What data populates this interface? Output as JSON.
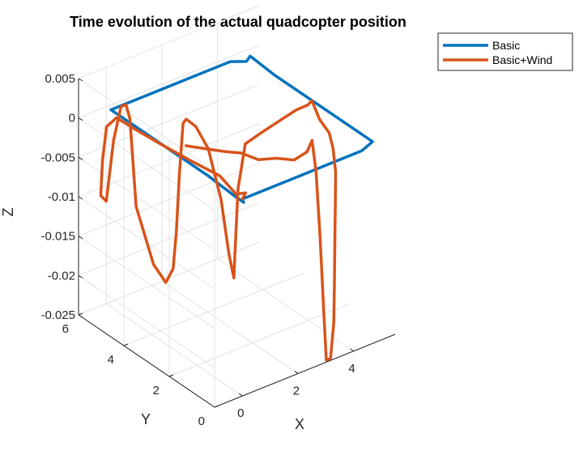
{
  "chart_data": {
    "type": "line",
    "title": "Time evolution of the actual quadcopter position",
    "xlabel": "X",
    "ylabel": "Y",
    "zlabel": "Z",
    "xlim": [
      -1,
      5.5
    ],
    "ylim": [
      0,
      6
    ],
    "zlim": [
      -0.025,
      0.005
    ],
    "xticks": [
      0,
      2,
      4
    ],
    "yticks": [
      0,
      2,
      4,
      6
    ],
    "zticks": [
      0.005,
      0,
      -0.005,
      -0.01,
      -0.015,
      -0.02,
      -0.025
    ],
    "xtick_labels": [
      "0",
      "2",
      "4"
    ],
    "ytick_labels": [
      "0",
      "2",
      "4",
      "6"
    ],
    "ztick_labels": [
      "0.005",
      "0",
      "-0.005",
      "-0.01",
      "-0.015",
      "-0.02",
      "-0.025"
    ],
    "grid": true,
    "legend_position": "top-right",
    "series": [
      {
        "name": "Basic",
        "color": "#0072BD",
        "points": [
          [
            0,
            0,
            0
          ],
          [
            0.05,
            0,
            -0.0005
          ],
          [
            0,
            0.3,
            -0.0003
          ],
          [
            0,
            1.5,
            0.0
          ],
          [
            0,
            3.0,
            0.0
          ],
          [
            0,
            4.5,
            0.0
          ],
          [
            0,
            5.8,
            0.0
          ],
          [
            0.3,
            5.8,
            0.0
          ],
          [
            1.5,
            5.8,
            0.0
          ],
          [
            3.0,
            5.8,
            0.0
          ],
          [
            4.3,
            5.8,
            0.0
          ],
          [
            4.8,
            5.7,
            -0.0005
          ],
          [
            4.85,
            5.6,
            0.0003
          ],
          [
            4.85,
            4.5,
            0.0
          ],
          [
            4.85,
            3.0,
            0.0
          ],
          [
            4.85,
            1.5,
            0.0
          ],
          [
            4.85,
            0.2,
            0.0
          ],
          [
            4.3,
            0.0,
            0.0
          ],
          [
            3.0,
            0.0,
            0.0
          ],
          [
            1.5,
            0.0,
            0.0
          ],
          [
            0.2,
            0.0,
            0.0
          ],
          [
            0,
            0,
            0
          ]
        ]
      },
      {
        "name": "Basic+Wind",
        "color": "#D95319",
        "points": [
          [
            0,
            0,
            0
          ],
          [
            0.2,
            0.1,
            0.0003
          ],
          [
            0.1,
            0.4,
            -0.0003
          ],
          [
            0.0,
            1.0,
            0.001
          ],
          [
            -0.2,
            2.0,
            0.0012
          ],
          [
            -0.4,
            3.0,
            0.0015
          ],
          [
            -0.5,
            4.2,
            0.0015
          ],
          [
            -0.45,
            5.0,
            0.0012
          ],
          [
            -0.4,
            5.5,
            -0.001
          ],
          [
            -0.3,
            5.8,
            -0.006
          ],
          [
            -0.2,
            6.0,
            -0.011
          ],
          [
            0.0,
            6.0,
            -0.012
          ],
          [
            0.1,
            5.8,
            -0.004
          ],
          [
            0.2,
            5.6,
            0.0005
          ],
          [
            0.3,
            5.5,
            0.0008
          ],
          [
            0.4,
            5.45,
            -0.001
          ],
          [
            0.5,
            5.3,
            -0.012
          ],
          [
            0.8,
            4.9,
            -0.019
          ],
          [
            1.0,
            4.6,
            -0.021
          ],
          [
            1.1,
            4.4,
            -0.019
          ],
          [
            1.05,
            4.2,
            -0.014
          ],
          [
            1.0,
            4.0,
            -0.006
          ],
          [
            1.05,
            3.9,
            0.0005
          ],
          [
            1.0,
            3.7,
            0.0015
          ],
          [
            1.1,
            3.4,
            0.001
          ],
          [
            1.3,
            3.1,
            -0.0015
          ],
          [
            1.6,
            2.9,
            -0.008
          ],
          [
            1.8,
            2.8,
            -0.015
          ],
          [
            1.9,
            2.7,
            -0.018
          ],
          [
            1.85,
            2.6,
            -0.015
          ],
          [
            1.8,
            2.4,
            -0.006
          ],
          [
            1.9,
            2.2,
            0.0
          ],
          [
            2.2,
            1.9,
            0.0015
          ],
          [
            2.6,
            1.6,
            0.003
          ],
          [
            3.0,
            1.3,
            0.0045
          ],
          [
            3.3,
            1.15,
            0.005
          ],
          [
            3.4,
            1.1,
            0.0055
          ],
          [
            3.6,
            1.0,
            0.003
          ],
          [
            3.9,
            0.95,
            0.001
          ],
          [
            4.0,
            0.9,
            -0.001
          ],
          [
            4.05,
            0.85,
            -0.004
          ],
          [
            4.0,
            0.8,
            -0.008
          ],
          [
            3.95,
            0.75,
            -0.01
          ],
          [
            3.9,
            0.7,
            -0.013
          ],
          [
            3.8,
            0.6,
            -0.018
          ],
          [
            3.7,
            0.5,
            -0.022
          ],
          [
            3.6,
            0.45,
            -0.024
          ],
          [
            3.5,
            0.4,
            -0.026
          ],
          [
            3.35,
            0.4,
            -0.026
          ],
          [
            3.3,
            0.45,
            -0.02
          ],
          [
            3.2,
            0.5,
            -0.01
          ],
          [
            3.1,
            0.55,
            -0.002
          ],
          [
            3.0,
            0.6,
            0.002
          ],
          [
            2.9,
            0.7,
            0.0005
          ],
          [
            2.6,
            0.9,
            -0.0005
          ],
          [
            2.2,
            1.2,
            -0.0003
          ],
          [
            1.8,
            1.5,
            -0.0005
          ],
          [
            1.5,
            1.9,
            0.0
          ],
          [
            1.2,
            2.2,
            0.0
          ],
          [
            0.8,
            2.7,
            0.0
          ],
          [
            0.5,
            3.1,
            0.0
          ]
        ]
      }
    ]
  }
}
